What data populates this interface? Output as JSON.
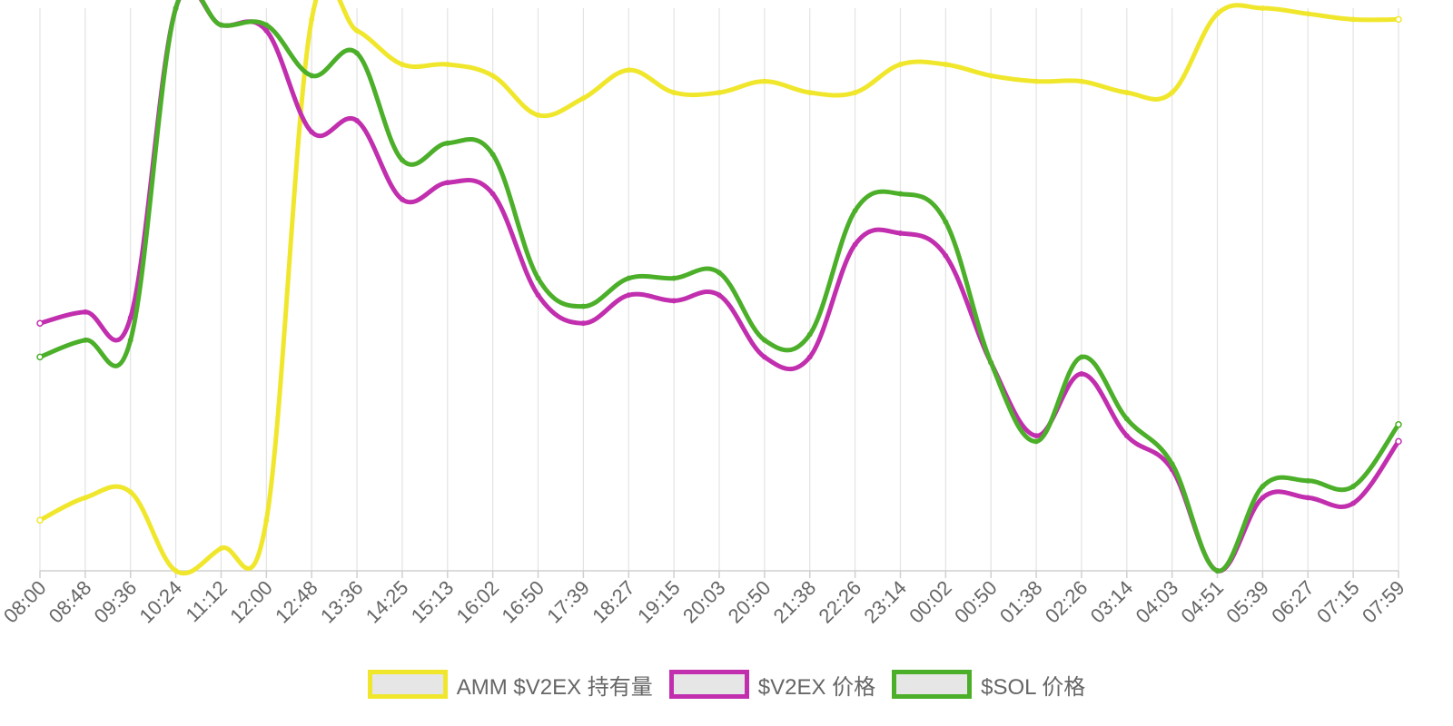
{
  "chart_data": {
    "type": "line",
    "x": [
      "08:00",
      "08:48",
      "09:36",
      "10:24",
      "11:12",
      "12:00",
      "12:48",
      "13:36",
      "14:25",
      "15:13",
      "16:02",
      "16:50",
      "17:39",
      "18:27",
      "19:15",
      "20:03",
      "20:50",
      "21:38",
      "22:26",
      "23:14",
      "00:02",
      "00:50",
      "01:38",
      "02:26",
      "03:14",
      "04:03",
      "04:51",
      "05:39",
      "06:27",
      "07:15",
      "07:59"
    ],
    "y_scale": "normalized",
    "ylim": [
      0,
      1
    ],
    "grid": {
      "vertical": true,
      "horizontal": false
    },
    "legend_position": "bottom",
    "series": [
      {
        "name": "AMM $V2EX 持有量",
        "color": "#f0e72d",
        "values": [
          0.09,
          0.13,
          0.14,
          0.0,
          0.04,
          0.09,
          0.98,
          0.96,
          0.9,
          0.9,
          0.88,
          0.81,
          0.84,
          0.89,
          0.85,
          0.85,
          0.87,
          0.85,
          0.85,
          0.9,
          0.9,
          0.88,
          0.87,
          0.87,
          0.85,
          0.85,
          0.99,
          1.0,
          0.99,
          0.98,
          0.98
        ]
      },
      {
        "name": "$V2EX 价格",
        "color": "#c12fae",
        "values": [
          0.44,
          0.46,
          0.45,
          1.0,
          0.97,
          0.96,
          0.78,
          0.8,
          0.66,
          0.69,
          0.67,
          0.49,
          0.44,
          0.49,
          0.48,
          0.49,
          0.38,
          0.38,
          0.58,
          0.6,
          0.56,
          0.37,
          0.24,
          0.35,
          0.24,
          0.18,
          0.0,
          0.13,
          0.13,
          0.12,
          0.23
        ]
      },
      {
        "name": "$SOL 价格",
        "color": "#4caf29",
        "values": [
          0.38,
          0.41,
          0.41,
          1.0,
          0.97,
          0.97,
          0.88,
          0.92,
          0.73,
          0.76,
          0.74,
          0.52,
          0.47,
          0.52,
          0.52,
          0.53,
          0.41,
          0.42,
          0.64,
          0.67,
          0.62,
          0.37,
          0.23,
          0.38,
          0.27,
          0.19,
          0.0,
          0.15,
          0.16,
          0.15,
          0.26
        ]
      }
    ]
  },
  "legend": {
    "items": [
      {
        "label": "AMM $V2EX 持有量",
        "color": "#f0e72d"
      },
      {
        "label": "$V2EX 价格",
        "color": "#c12fae"
      },
      {
        "label": "$SOL 价格",
        "color": "#4caf29"
      }
    ]
  }
}
